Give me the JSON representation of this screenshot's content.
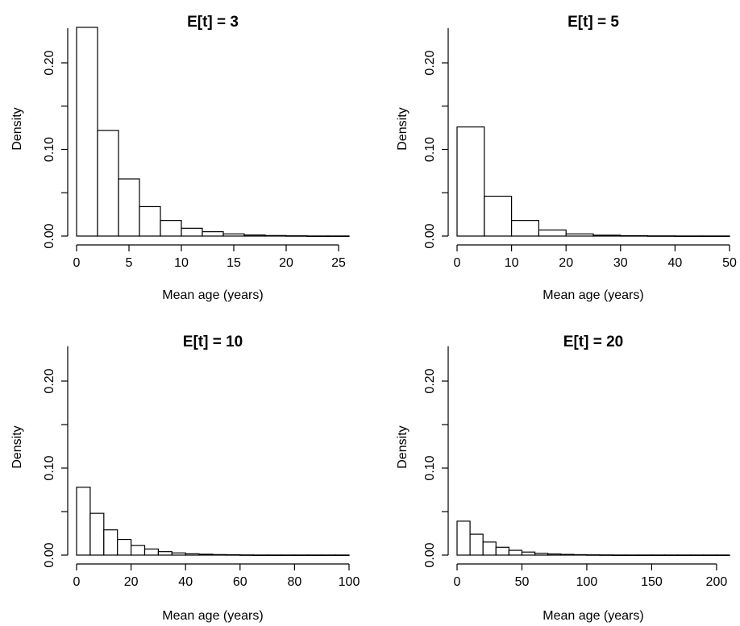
{
  "chart_data": [
    {
      "type": "bar",
      "title": "E[t] = 3",
      "xlabel": "Mean age (years)",
      "ylabel": "Density",
      "xlim": [
        0,
        26
      ],
      "ylim": [
        0,
        0.24
      ],
      "xticks": [
        0,
        5,
        10,
        15,
        20,
        25
      ],
      "yticks": [
        0.0,
        0.1,
        0.2
      ],
      "ytick_labels": [
        "0.00",
        "0.10",
        "0.20"
      ],
      "bin_width": 2,
      "bins": [
        {
          "x0": 0,
          "x1": 2,
          "value": 0.241
        },
        {
          "x0": 2,
          "x1": 4,
          "value": 0.122
        },
        {
          "x0": 4,
          "x1": 6,
          "value": 0.066
        },
        {
          "x0": 6,
          "x1": 8,
          "value": 0.034
        },
        {
          "x0": 8,
          "x1": 10,
          "value": 0.018
        },
        {
          "x0": 10,
          "x1": 12,
          "value": 0.009
        },
        {
          "x0": 12,
          "x1": 14,
          "value": 0.005
        },
        {
          "x0": 14,
          "x1": 16,
          "value": 0.0025
        },
        {
          "x0": 16,
          "x1": 18,
          "value": 0.0012
        },
        {
          "x0": 18,
          "x1": 20,
          "value": 0.0006
        },
        {
          "x0": 20,
          "x1": 22,
          "value": 0.0003
        },
        {
          "x0": 22,
          "x1": 24,
          "value": 0.0001
        },
        {
          "x0": 24,
          "x1": 26,
          "value": 0.0001
        }
      ]
    },
    {
      "type": "bar",
      "title": "E[t] = 5",
      "xlabel": "Mean age (years)",
      "ylabel": "Density",
      "xlim": [
        0,
        50
      ],
      "ylim": [
        0,
        0.24
      ],
      "xticks": [
        0,
        10,
        20,
        30,
        40,
        50
      ],
      "yticks": [
        0.0,
        0.1,
        0.2
      ],
      "ytick_labels": [
        "0.00",
        "0.10",
        "0.20"
      ],
      "bin_width": 5,
      "bins": [
        {
          "x0": 0,
          "x1": 5,
          "value": 0.126
        },
        {
          "x0": 5,
          "x1": 10,
          "value": 0.046
        },
        {
          "x0": 10,
          "x1": 15,
          "value": 0.018
        },
        {
          "x0": 15,
          "x1": 20,
          "value": 0.007
        },
        {
          "x0": 20,
          "x1": 25,
          "value": 0.0025
        },
        {
          "x0": 25,
          "x1": 30,
          "value": 0.001
        },
        {
          "x0": 30,
          "x1": 35,
          "value": 0.0004
        },
        {
          "x0": 35,
          "x1": 40,
          "value": 0.0002
        },
        {
          "x0": 40,
          "x1": 45,
          "value": 0.0001
        },
        {
          "x0": 45,
          "x1": 50,
          "value": 0.0001
        }
      ]
    },
    {
      "type": "bar",
      "title": "E[t] = 10",
      "xlabel": "Mean age (years)",
      "ylabel": "Density",
      "xlim": [
        0,
        100
      ],
      "ylim": [
        0,
        0.24
      ],
      "xticks": [
        0,
        20,
        40,
        60,
        80,
        100
      ],
      "yticks": [
        0.0,
        0.1,
        0.2
      ],
      "ytick_labels": [
        "0.00",
        "0.10",
        "0.20"
      ],
      "bin_width": 5,
      "bins": [
        {
          "x0": 0,
          "x1": 5,
          "value": 0.078
        },
        {
          "x0": 5,
          "x1": 10,
          "value": 0.048
        },
        {
          "x0": 10,
          "x1": 15,
          "value": 0.029
        },
        {
          "x0": 15,
          "x1": 20,
          "value": 0.018
        },
        {
          "x0": 20,
          "x1": 25,
          "value": 0.011
        },
        {
          "x0": 25,
          "x1": 30,
          "value": 0.007
        },
        {
          "x0": 30,
          "x1": 35,
          "value": 0.004
        },
        {
          "x0": 35,
          "x1": 40,
          "value": 0.0025
        },
        {
          "x0": 40,
          "x1": 45,
          "value": 0.0015
        },
        {
          "x0": 45,
          "x1": 50,
          "value": 0.001
        },
        {
          "x0": 50,
          "x1": 55,
          "value": 0.0006
        },
        {
          "x0": 55,
          "x1": 60,
          "value": 0.0004
        },
        {
          "x0": 60,
          "x1": 65,
          "value": 0.0002
        },
        {
          "x0": 65,
          "x1": 70,
          "value": 0.0001
        },
        {
          "x0": 70,
          "x1": 75,
          "value": 0.0001
        },
        {
          "x0": 75,
          "x1": 80,
          "value": 0.0001
        },
        {
          "x0": 80,
          "x1": 85,
          "value": 0.0001
        },
        {
          "x0": 85,
          "x1": 90,
          "value": 0.0001
        },
        {
          "x0": 90,
          "x1": 95,
          "value": 0.0001
        },
        {
          "x0": 95,
          "x1": 100,
          "value": 0.0001
        }
      ]
    },
    {
      "type": "bar",
      "title": "E[t] = 20",
      "xlabel": "Mean age (years)",
      "ylabel": "Density",
      "xlim": [
        0,
        210
      ],
      "ylim": [
        0,
        0.24
      ],
      "xticks": [
        0,
        50,
        100,
        150,
        200
      ],
      "yticks": [
        0.0,
        0.1,
        0.2
      ],
      "ytick_labels": [
        "0.00",
        "0.10",
        "0.20"
      ],
      "bin_width": 10,
      "bins": [
        {
          "x0": 0,
          "x1": 10,
          "value": 0.039
        },
        {
          "x0": 10,
          "x1": 20,
          "value": 0.024
        },
        {
          "x0": 20,
          "x1": 30,
          "value": 0.015
        },
        {
          "x0": 30,
          "x1": 40,
          "value": 0.009
        },
        {
          "x0": 40,
          "x1": 50,
          "value": 0.0055
        },
        {
          "x0": 50,
          "x1": 60,
          "value": 0.0035
        },
        {
          "x0": 60,
          "x1": 70,
          "value": 0.002
        },
        {
          "x0": 70,
          "x1": 80,
          "value": 0.0013
        },
        {
          "x0": 80,
          "x1": 90,
          "value": 0.0008
        },
        {
          "x0": 90,
          "x1": 100,
          "value": 0.0005
        },
        {
          "x0": 100,
          "x1": 110,
          "value": 0.0003
        },
        {
          "x0": 110,
          "x1": 120,
          "value": 0.0002
        },
        {
          "x0": 120,
          "x1": 130,
          "value": 0.0001
        },
        {
          "x0": 130,
          "x1": 140,
          "value": 0.0001
        },
        {
          "x0": 140,
          "x1": 150,
          "value": 0.0001
        },
        {
          "x0": 150,
          "x1": 160,
          "value": 0.0001
        },
        {
          "x0": 160,
          "x1": 170,
          "value": 0.0001
        },
        {
          "x0": 170,
          "x1": 180,
          "value": 0.0001
        },
        {
          "x0": 180,
          "x1": 190,
          "value": 0.0001
        },
        {
          "x0": 190,
          "x1": 200,
          "value": 0.0001
        },
        {
          "x0": 200,
          "x1": 210,
          "value": 0.0001
        }
      ]
    }
  ]
}
